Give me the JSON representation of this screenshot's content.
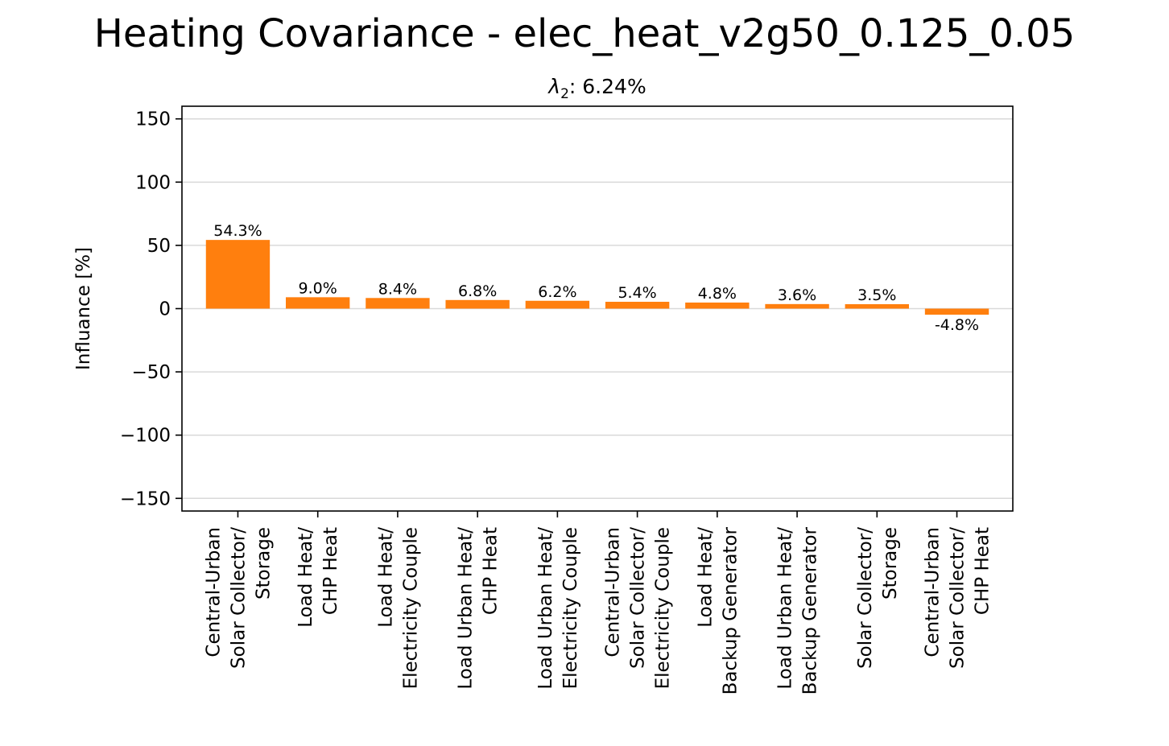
{
  "figure": {
    "title": "Heating Covariance - elec_heat_v2g50_0.125_0.05"
  },
  "chart_data": {
    "type": "bar",
    "subtitle_var": "λ",
    "subtitle_sub": "2",
    "subtitle_rest": ": 6.24%",
    "xlabel": "",
    "ylabel": "Influance [%]",
    "ylim": [
      -160,
      160
    ],
    "yticks": [
      -150,
      -100,
      -50,
      0,
      50,
      100,
      150
    ],
    "ytick_labels": [
      "−150",
      "−100",
      "−50",
      "0",
      "50",
      "100",
      "150"
    ],
    "grid": "horizontal",
    "bar_color": "#ff7f0e",
    "categories": [
      [
        "Central-Urban",
        "Solar Collector/",
        "Storage"
      ],
      [
        "Load Heat/",
        "CHP Heat"
      ],
      [
        "Load Heat/",
        "Electricity Couple"
      ],
      [
        "Load Urban Heat/",
        "CHP Heat"
      ],
      [
        "Load Urban Heat/",
        "Electricity Couple"
      ],
      [
        "Central-Urban",
        "Solar Collector/",
        "Electricity Couple"
      ],
      [
        "Load Heat/",
        "Backup Generator"
      ],
      [
        "Load Urban Heat/",
        "Backup Generator"
      ],
      [
        "Solar Collector/",
        "Storage"
      ],
      [
        "Central-Urban",
        "Solar Collector/",
        "CHP Heat"
      ]
    ],
    "values": [
      54.3,
      9.0,
      8.4,
      6.8,
      6.2,
      5.4,
      4.8,
      3.6,
      3.5,
      -4.8
    ],
    "data_labels": [
      "54.3%",
      "9.0%",
      "8.4%",
      "6.8%",
      "6.2%",
      "5.4%",
      "4.8%",
      "3.6%",
      "3.5%",
      "-4.8%"
    ]
  }
}
